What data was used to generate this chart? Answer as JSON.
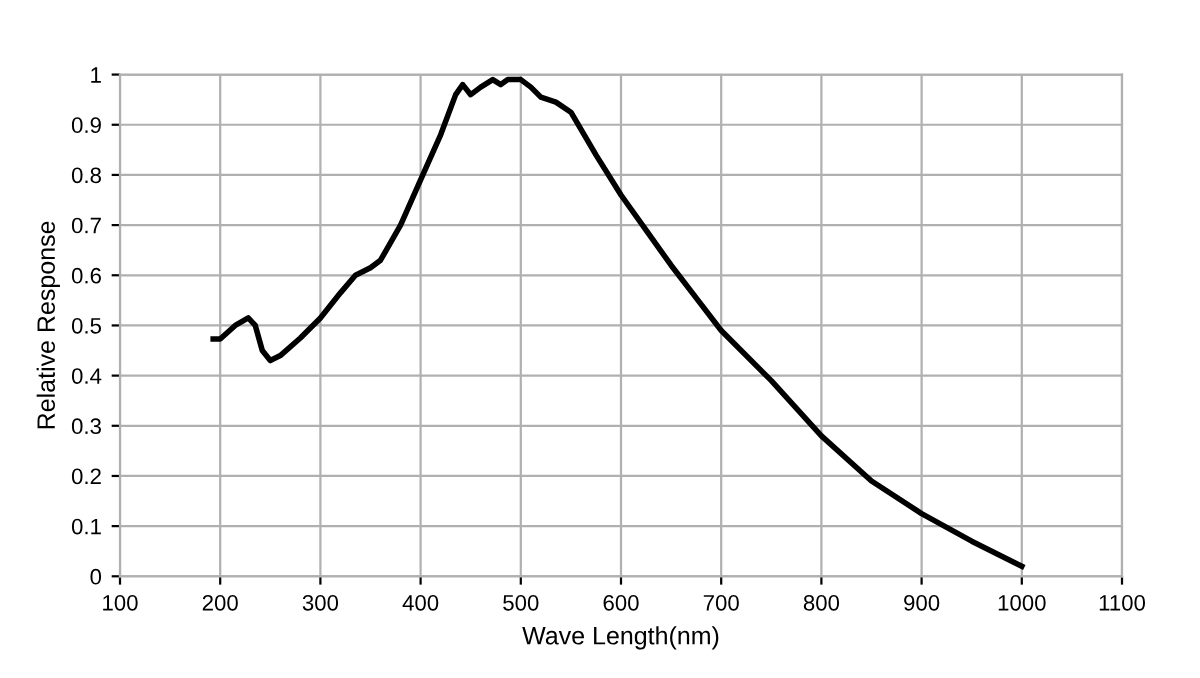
{
  "chart_data": {
    "type": "line",
    "xlabel": "Wave Length(nm)",
    "ylabel": "Relative Response",
    "x": [
      193,
      200,
      215,
      228,
      235,
      242,
      250,
      260,
      280,
      300,
      320,
      335,
      350,
      360,
      380,
      400,
      420,
      435,
      442,
      450,
      460,
      472,
      480,
      487,
      500,
      510,
      520,
      535,
      550,
      575,
      600,
      625,
      650,
      675,
      700,
      750,
      800,
      850,
      900,
      950,
      1000
    ],
    "series": [
      {
        "color": "#000000",
        "values": [
          0.473,
          0.473,
          0.5,
          0.515,
          0.5,
          0.45,
          0.43,
          0.44,
          0.475,
          0.515,
          0.565,
          0.6,
          0.615,
          0.63,
          0.7,
          0.79,
          0.88,
          0.96,
          0.98,
          0.96,
          0.975,
          0.99,
          0.98,
          0.99,
          0.99,
          0.975,
          0.955,
          0.945,
          0.925,
          0.84,
          0.76,
          0.69,
          0.62,
          0.555,
          0.49,
          0.39,
          0.28,
          0.19,
          0.125,
          0.07,
          0.02
        ]
      }
    ],
    "xlim": [
      100,
      1100
    ],
    "xticks": [
      100,
      200,
      300,
      400,
      500,
      600,
      700,
      800,
      900,
      1000,
      1100
    ],
    "ylim": [
      0,
      1
    ],
    "yticks": [
      0,
      0.1,
      0.2,
      0.3,
      0.4,
      0.5,
      0.6,
      0.7,
      0.8,
      0.9,
      1
    ],
    "grid": true,
    "legend": false,
    "marker": "none",
    "line_style": "solid"
  }
}
